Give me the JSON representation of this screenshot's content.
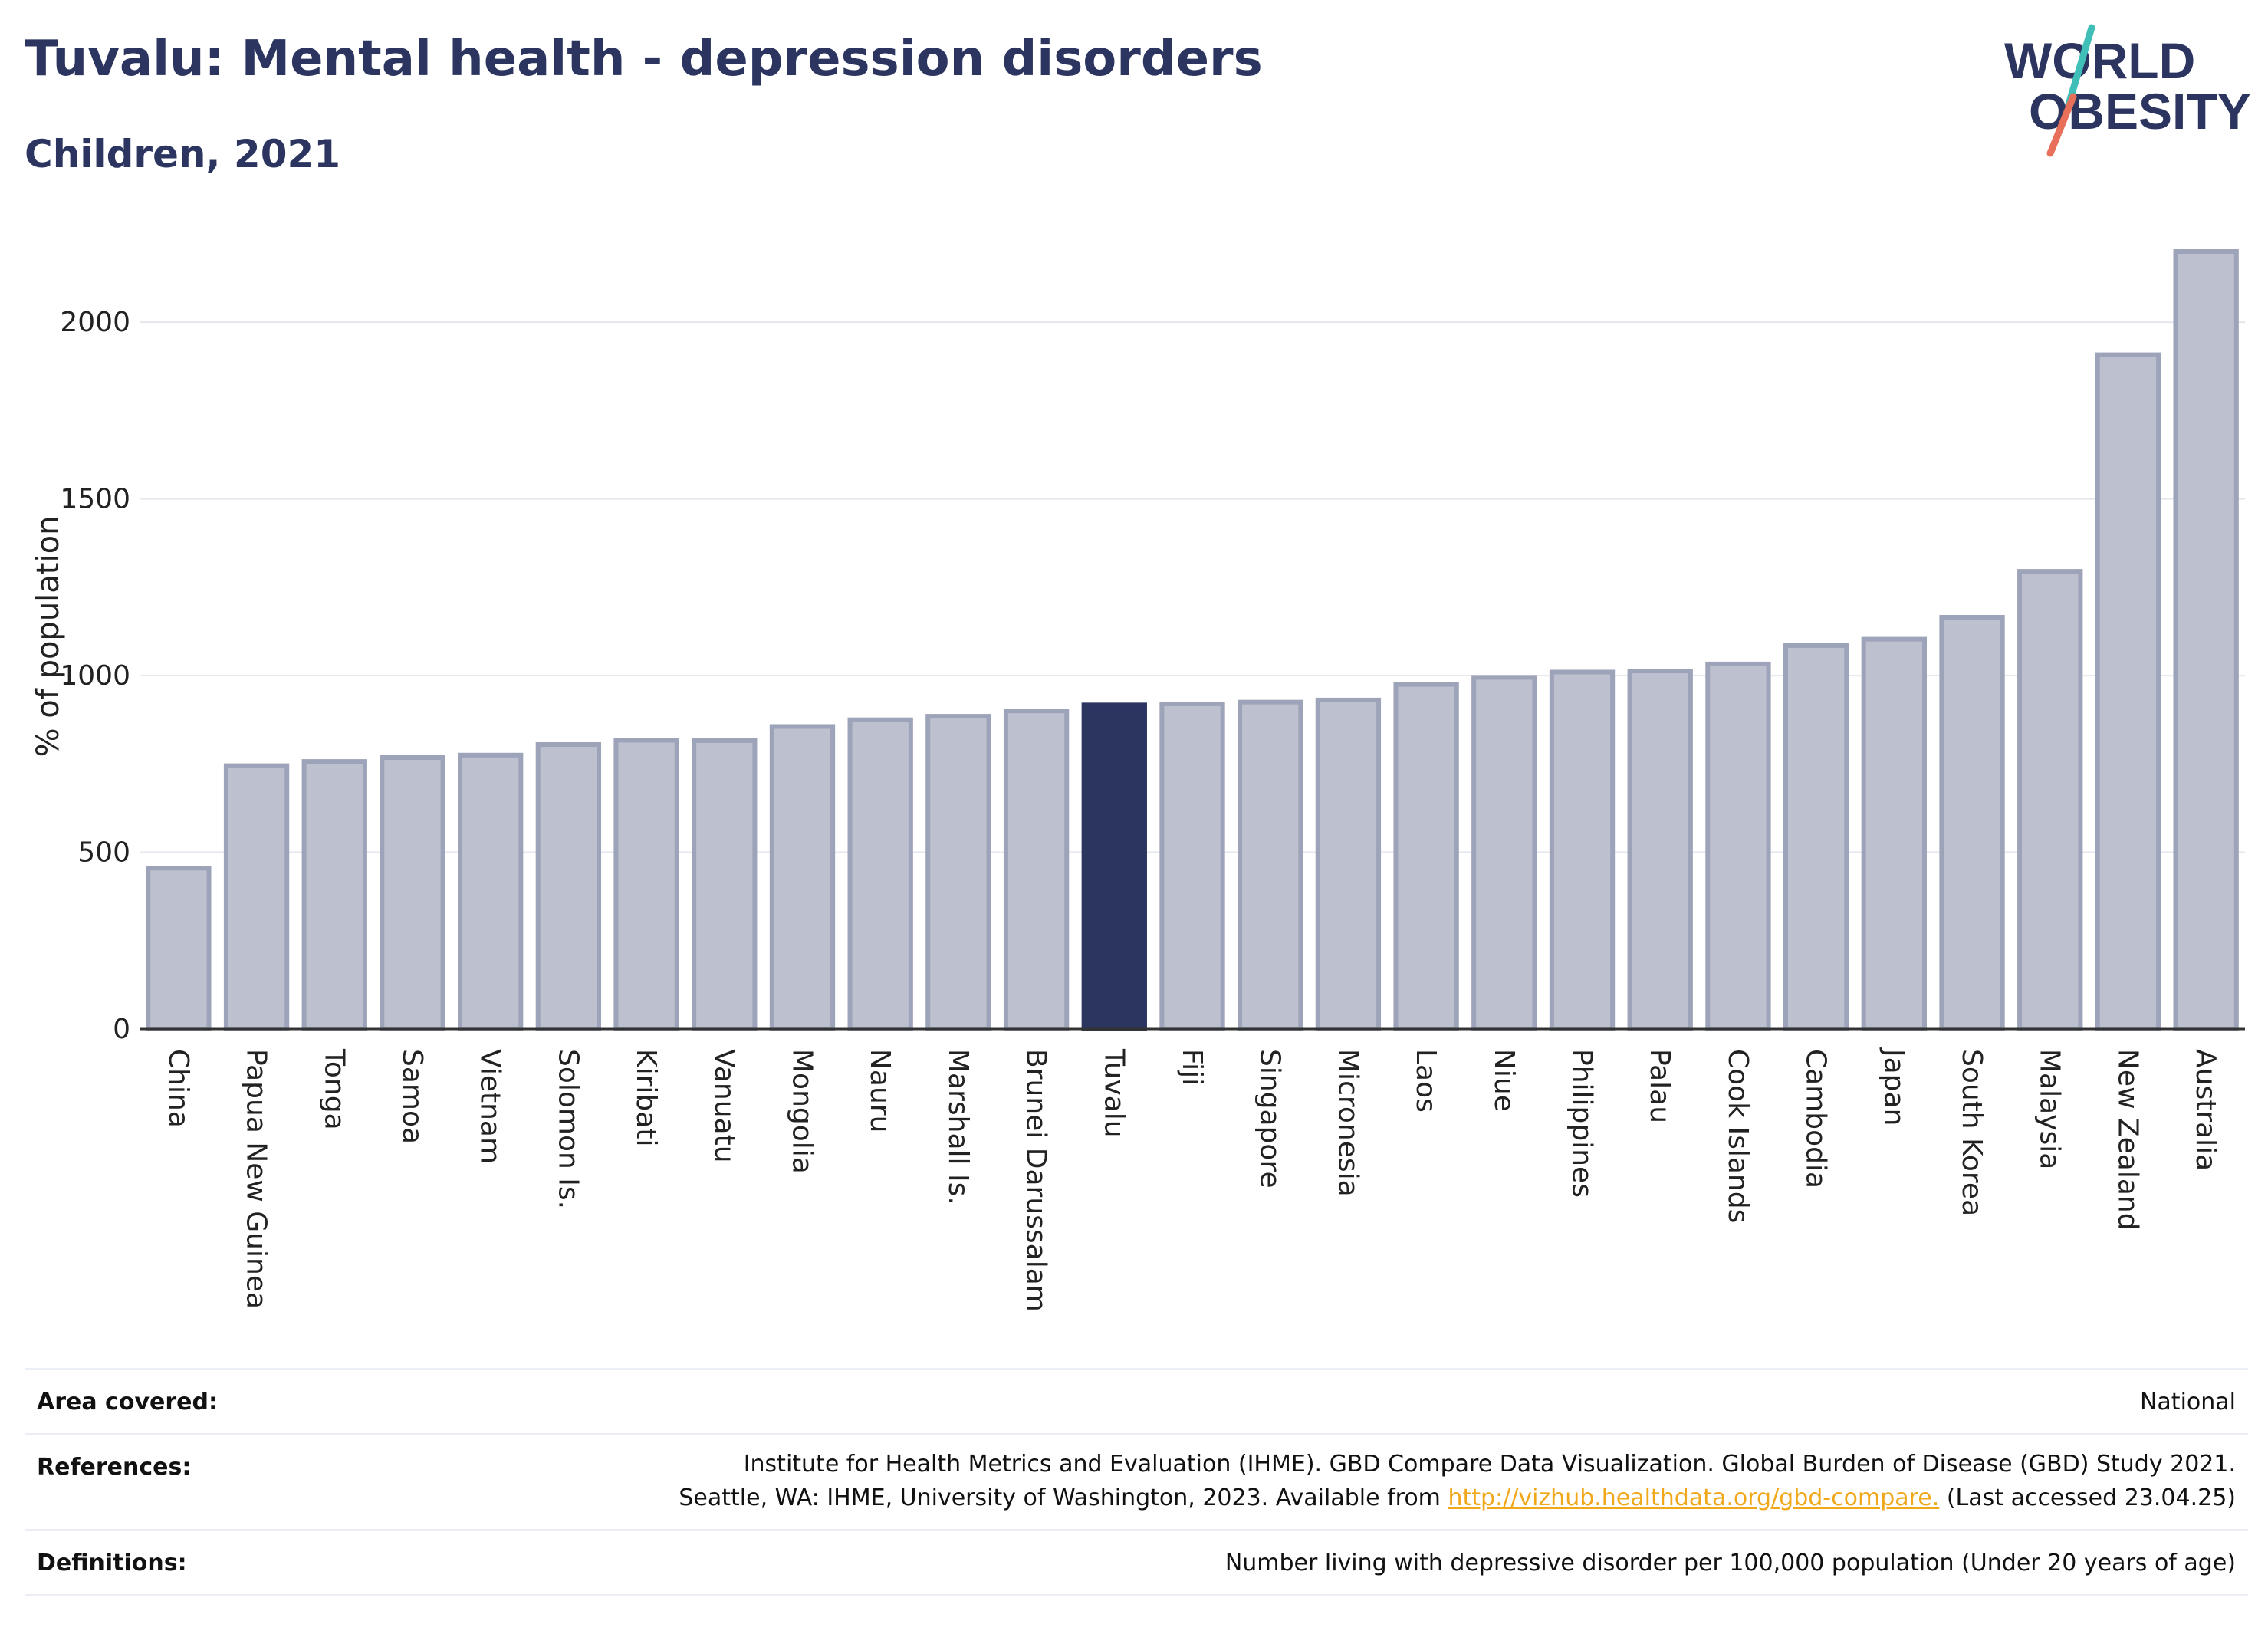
{
  "header": {
    "title": "Tuvalu: Mental health - depression disorders",
    "subtitle": "Children, 2021"
  },
  "logo": {
    "line1": "WORLD",
    "line2": "OBESITY"
  },
  "chart_data": {
    "type": "bar",
    "ylabel": "% of population",
    "ylim": [
      0,
      2200
    ],
    "yticks": [
      0,
      500,
      1000,
      1500,
      2000
    ],
    "grid": true,
    "highlight": "Tuvalu",
    "highlight_color": "#2b3560",
    "bar_color": "#bcc0cf",
    "bar_border_color": "#9da3b8",
    "categories": [
      "China",
      "Papua New Guinea",
      "Tonga",
      "Samoa",
      "Vietnam",
      "Solomon Is.",
      "Kiribati",
      "Vanuatu",
      "Mongolia",
      "Nauru",
      "Marshall Is.",
      "Brunei Darussalam",
      "Tuvalu",
      "Fiji",
      "Singapore",
      "Micronesia",
      "Laos",
      "Niue",
      "Philippines",
      "Palau",
      "Cook Islands",
      "Cambodia",
      "Japan",
      "South Korea",
      "Malaysia",
      "New Zealand",
      "Australia"
    ],
    "values": [
      455,
      745,
      757,
      768,
      775,
      805,
      817,
      816,
      856,
      875,
      885,
      900,
      917,
      920,
      925,
      931,
      975,
      995,
      1010,
      1013,
      1033,
      1085,
      1103,
      1165,
      1295,
      1908,
      2200
    ]
  },
  "info": {
    "area_label": "Area covered:",
    "area_value": "National",
    "references_label": "References:",
    "references_line1": "Institute for Health Metrics and Evaluation (IHME). GBD Compare Data Visualization. Global Burden of Disease (GBD) Study 2021.",
    "references_line2_pre": "Seattle, WA: IHME, University of Washington, 2023. Available from ",
    "references_link": "http://vizhub.healthdata.org/gbd-compare.",
    "references_line2_post": " (Last accessed 23.04.25)",
    "definitions_label": "Definitions:",
    "definitions_value": "Number living with depressive disorder per 100,000 population (Under 20 years of age)"
  }
}
